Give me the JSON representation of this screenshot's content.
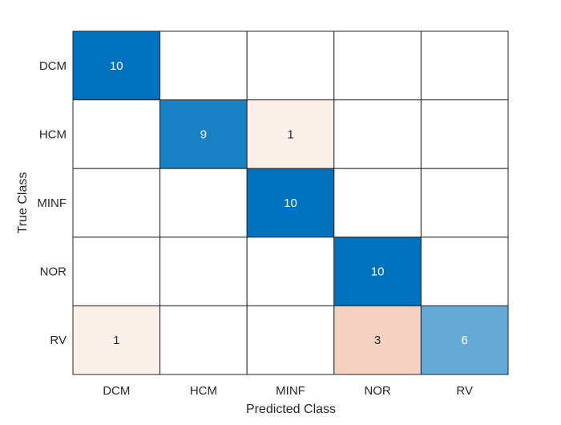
{
  "chart_data": {
    "type": "heatmap",
    "title": "",
    "xlabel": "Predicted Class",
    "ylabel": "True Class",
    "x_categories": [
      "DCM",
      "HCM",
      "MINF",
      "NOR",
      "RV"
    ],
    "y_categories": [
      "DCM",
      "HCM",
      "MINF",
      "NOR",
      "RV"
    ],
    "values": [
      [
        10,
        0,
        0,
        0,
        0
      ],
      [
        0,
        9,
        1,
        0,
        0
      ],
      [
        0,
        0,
        10,
        0,
        0
      ],
      [
        0,
        0,
        0,
        10,
        0
      ],
      [
        1,
        0,
        0,
        3,
        6
      ]
    ],
    "colors": {
      "diagonal_max": "#0072bd",
      "off_diagonal_max": "#d95319",
      "empty": "#ffffff",
      "grid": "#262626",
      "text_dark": "#262626",
      "text_light": "#ffffff"
    }
  }
}
